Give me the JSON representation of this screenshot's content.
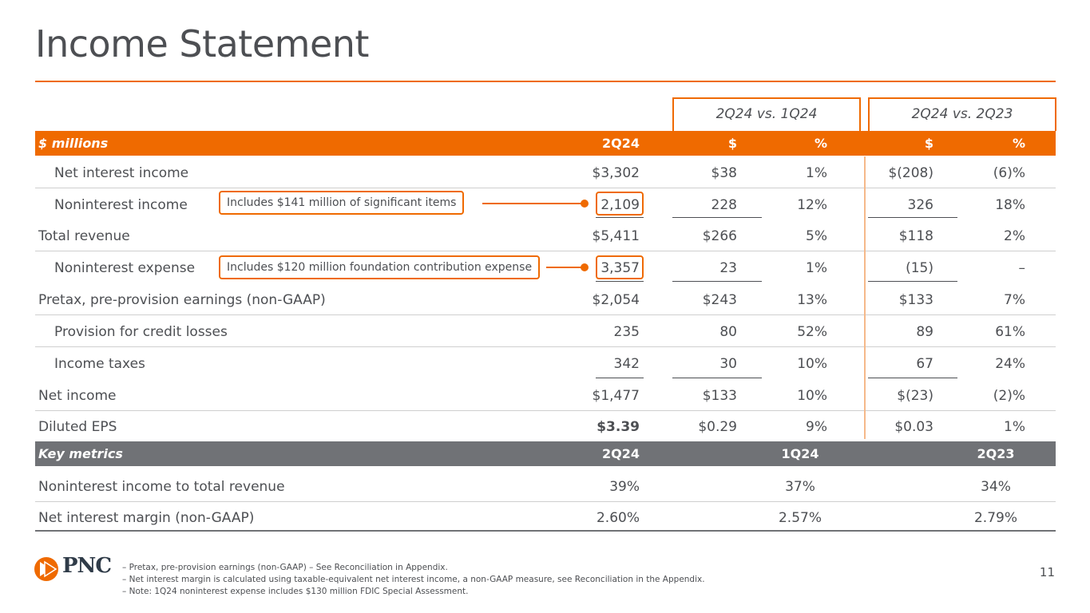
{
  "title": "Income Statement",
  "groups": {
    "q1": "2Q24 vs. 1Q24",
    "q2": "2Q24 vs. 2Q23"
  },
  "header": {
    "label": "$ millions",
    "col1": "2Q24",
    "col2": "$",
    "col3": "%",
    "col4": "$",
    "col5": "%"
  },
  "rows": [
    {
      "label": "Net interest income",
      "v1": "$3,302",
      "v2": "$38",
      "v3": "1%",
      "v4": "$(208)",
      "v5": "(6)%"
    },
    {
      "label": "Noninterest income",
      "v1": "2,109",
      "v2": "228",
      "v3": "12%",
      "v4": "326",
      "v5": "18%"
    },
    {
      "label": "Total revenue",
      "v1": "$5,411",
      "v2": "$266",
      "v3": "5%",
      "v4": "$118",
      "v5": "2%"
    },
    {
      "label": "Noninterest expense",
      "v1": "3,357",
      "v2": "23",
      "v3": "1%",
      "v4": "(15)",
      "v5": "–"
    },
    {
      "label": "Pretax, pre-provision earnings (non-GAAP)",
      "v1": "$2,054",
      "v2": "$243",
      "v3": "13%",
      "v4": "$133",
      "v5": "7%"
    },
    {
      "label": "Provision for credit losses",
      "v1": "235",
      "v2": "80",
      "v3": "52%",
      "v4": "89",
      "v5": "61%"
    },
    {
      "label": "Income taxes",
      "v1": "342",
      "v2": "30",
      "v3": "10%",
      "v4": "67",
      "v5": "24%"
    },
    {
      "label": "Net income",
      "v1": "$1,477",
      "v2": "$133",
      "v3": "10%",
      "v4": "$(23)",
      "v5": "(2)%"
    },
    {
      "label": "Diluted EPS",
      "v1": "$3.39",
      "v2": "$0.29",
      "v3": "9%",
      "v4": "$0.03",
      "v5": "1%"
    }
  ],
  "callouts": {
    "noninterest_income": "Includes $141 million of significant items",
    "noninterest_expense": "Includes $120 million foundation contribution expense"
  },
  "metrics_header": {
    "label": "Key metrics",
    "col1": "2Q24",
    "col2": "1Q24",
    "col3": "2Q23"
  },
  "metrics": [
    {
      "label": "Noninterest income to total revenue",
      "v1": "39%",
      "v2": "37%",
      "v3": "34%"
    },
    {
      "label": "Net interest margin (non-GAAP)",
      "v1": "2.60%",
      "v2": "2.57%",
      "v3": "2.79%"
    }
  ],
  "footnotes": [
    "–  Pretax, pre-provision earnings (non-GAAP) – See Reconciliation in Appendix.",
    "–  Net interest margin is calculated using taxable-equivalent net interest income, a non-GAAP measure, see Reconciliation in the Appendix.",
    "–  Note: 1Q24 noninterest expense includes $130 million FDIC Special Assessment."
  ],
  "logo_text": "PNC",
  "page_number": "11",
  "colors": {
    "accent": "#ef6a00",
    "gray_header": "#707276",
    "text": "#4d4f53"
  }
}
